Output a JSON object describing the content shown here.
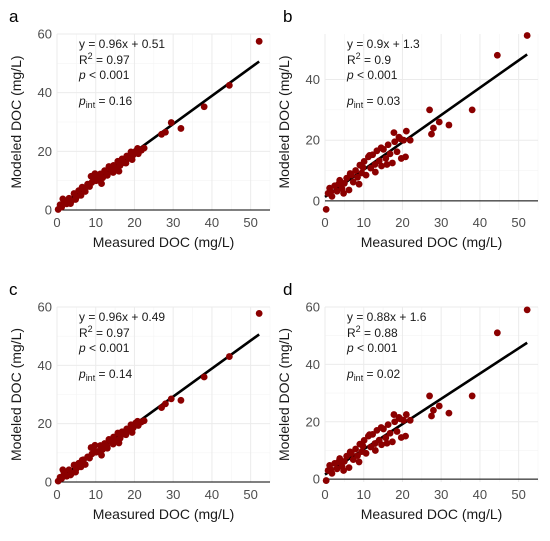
{
  "chart_data": [
    {
      "panel": "a",
      "type": "scatter",
      "xlabel": "Measured DOC (mg/L)",
      "ylabel": "Modeled DOC (mg/L)",
      "xlim": [
        0,
        55
      ],
      "ylim": [
        0,
        60
      ],
      "xticks": [
        0,
        10,
        20,
        30,
        40,
        50
      ],
      "yticks": [
        0,
        20,
        40,
        60
      ],
      "fit": {
        "slope": 0.96,
        "intercept": 0.51
      },
      "annotation": {
        "eq": "y = 0.96x + 0.51",
        "r2_label": "R",
        "r2_sup": "2",
        "r2_value": " = 0.97",
        "p_label": "p",
        "p_value": " < 0.001",
        "pint_label": "p",
        "pint_sub": "int",
        "pint_value": " = 0.16"
      },
      "x": [
        0.3,
        0.8,
        1.2,
        1.8,
        2.5,
        3.1,
        3.8,
        4.4,
        5.0,
        5.6,
        6.2,
        6.8,
        7.3,
        7.9,
        8.4,
        9.0,
        9.5,
        10.1,
        10.6,
        11.2,
        11.8,
        12.3,
        12.9,
        13.4,
        14.0,
        14.6,
        15.1,
        15.7,
        16.3,
        16.8,
        17.4,
        18.0,
        18.6,
        19.1,
        19.7,
        20.3,
        21.0,
        21.8,
        22.5,
        27.0,
        28.0,
        29.5,
        32.0,
        38.0,
        44.5,
        52.2,
        1.5,
        3.5,
        6.5,
        8.8,
        11.5,
        14.5,
        17.8,
        20.8,
        4.8,
        9.8,
        13.0,
        16.0,
        19.4
      ],
      "y": [
        0.2,
        1.8,
        1.0,
        3.0,
        2.1,
        4.0,
        3.2,
        5.6,
        4.4,
        6.6,
        5.0,
        7.4,
        6.3,
        8.8,
        8.0,
        9.4,
        11.2,
        10.0,
        10.7,
        12.3,
        11.0,
        13.4,
        12.0,
        14.8,
        13.6,
        15.2,
        14.2,
        16.6,
        15.2,
        17.4,
        16.1,
        18.4,
        17.6,
        19.8,
        18.8,
        20.0,
        19.2,
        20.4,
        21.1,
        25.8,
        26.5,
        29.8,
        27.8,
        35.2,
        42.5,
        57.5,
        3.8,
        2.2,
        7.8,
        11.5,
        9.0,
        12.8,
        16.0,
        21.0,
        3.6,
        12.4,
        11.8,
        13.2,
        17.2
      ]
    },
    {
      "panel": "b",
      "type": "scatter",
      "xlabel": "Measured DOC (mg/L)",
      "ylabel": "Modeled DOC (mg/L)",
      "xlim": [
        0,
        55
      ],
      "ylim": [
        -3,
        55
      ],
      "xticks": [
        0,
        10,
        20,
        30,
        40,
        50
      ],
      "yticks": [
        0,
        20,
        40
      ],
      "fit": {
        "slope": 0.9,
        "intercept": 1.3
      },
      "annotation": {
        "eq": "y = 0.9x + 1.3",
        "r2_label": "R",
        "r2_sup": "2",
        "r2_value": " = 0.9",
        "p_label": "p",
        "p_value": " < 0.001",
        "pint_label": "p",
        "pint_sub": "int",
        "pint_value": " = 0.03"
      },
      "x": [
        0.3,
        0.8,
        1.2,
        1.8,
        2.5,
        3.1,
        3.8,
        4.4,
        5.0,
        5.6,
        6.2,
        6.8,
        7.3,
        7.9,
        8.4,
        9.0,
        9.5,
        10.1,
        10.6,
        11.2,
        11.8,
        12.3,
        12.9,
        13.4,
        14.0,
        14.6,
        15.1,
        15.7,
        16.3,
        16.8,
        17.4,
        18.0,
        18.6,
        19.1,
        19.7,
        20.3,
        21.0,
        27.0,
        28.0,
        29.5,
        32.0,
        38.0,
        44.5,
        52.2,
        1.5,
        3.5,
        6.5,
        8.8,
        11.5,
        14.5,
        17.8,
        20.8,
        4.8,
        9.8,
        13.0,
        16.0,
        19.4,
        22.0,
        27.5
      ],
      "y": [
        -2.8,
        2.5,
        4.2,
        1.5,
        5.0,
        3.2,
        6.8,
        4.0,
        5.8,
        7.5,
        3.6,
        8.5,
        6.2,
        10.0,
        7.8,
        11.8,
        9.2,
        13.0,
        8.5,
        14.5,
        10.8,
        15.2,
        12.0,
        16.5,
        13.2,
        11.5,
        17.0,
        14.0,
        18.5,
        15.5,
        12.5,
        19.5,
        16.2,
        21.0,
        14.0,
        20.0,
        23.0,
        30.0,
        24.0,
        26.0,
        25.0,
        30.0,
        48.0,
        54.5,
        3.0,
        5.5,
        9.0,
        5.5,
        15.0,
        17.5,
        22.5,
        14.5,
        2.5,
        11.0,
        9.5,
        12.0,
        20.5,
        20.0,
        22.0
      ]
    },
    {
      "panel": "c",
      "type": "scatter",
      "xlabel": "Measured DOC (mg/L)",
      "ylabel": "Modeled DOC (mg/L)",
      "xlim": [
        0,
        55
      ],
      "ylim": [
        0,
        60
      ],
      "xticks": [
        0,
        10,
        20,
        30,
        40,
        50
      ],
      "yticks": [
        0,
        20,
        40,
        60
      ],
      "fit": {
        "slope": 0.96,
        "intercept": 0.49
      },
      "annotation": {
        "eq": "y = 0.96x + 0.49",
        "r2_label": "R",
        "r2_sup": "2",
        "r2_value": " = 0.97",
        "p_label": "p",
        "p_value": " < 0.001",
        "pint_label": "p",
        "pint_sub": "int",
        "pint_value": " = 0.14"
      },
      "x": [
        0.3,
        0.8,
        1.2,
        1.8,
        2.5,
        3.1,
        3.8,
        4.4,
        5.0,
        5.6,
        6.2,
        6.8,
        7.3,
        7.9,
        8.4,
        9.0,
        9.5,
        10.1,
        10.6,
        11.2,
        11.8,
        12.3,
        12.9,
        13.4,
        14.0,
        14.6,
        15.1,
        15.7,
        16.3,
        16.8,
        17.4,
        18.0,
        18.6,
        19.1,
        19.7,
        20.3,
        21.0,
        21.8,
        22.5,
        27.0,
        28.0,
        29.5,
        32.0,
        38.0,
        44.5,
        52.2,
        1.5,
        3.5,
        6.5,
        8.8,
        11.5,
        14.5,
        17.8,
        20.8,
        4.8,
        9.8,
        13.0,
        16.0,
        19.4
      ],
      "y": [
        0.3,
        1.6,
        1.2,
        3.2,
        2.0,
        4.2,
        3.0,
        5.8,
        4.6,
        6.4,
        5.2,
        7.6,
        6.0,
        8.6,
        8.2,
        9.6,
        11.0,
        10.2,
        10.5,
        12.5,
        11.2,
        13.2,
        12.2,
        14.6,
        13.8,
        15.4,
        14.0,
        16.8,
        15.0,
        17.2,
        16.4,
        18.2,
        17.8,
        19.6,
        18.6,
        20.2,
        19.4,
        20.6,
        21.0,
        25.5,
        26.8,
        28.5,
        28.0,
        36.0,
        43.0,
        57.8,
        4.2,
        2.4,
        7.5,
        11.8,
        9.2,
        13.0,
        16.2,
        20.8,
        3.4,
        12.6,
        11.6,
        13.4,
        17.0
      ]
    },
    {
      "panel": "d",
      "type": "scatter",
      "xlabel": "Measured DOC (mg/L)",
      "ylabel": "Modeled DOC (mg/L)",
      "xlim": [
        0,
        55
      ],
      "ylim": [
        -1,
        60
      ],
      "xticks": [
        0,
        10,
        20,
        30,
        40,
        50
      ],
      "yticks": [
        0,
        20,
        40,
        60
      ],
      "fit": {
        "slope": 0.88,
        "intercept": 1.6
      },
      "annotation": {
        "eq": "y = 0.88x + 1.6",
        "r2_label": "R",
        "r2_sup": "2",
        "r2_value": " = 0.88",
        "p_label": "p",
        "p_value": " < 0.001",
        "pint_label": "p",
        "pint_sub": "int",
        "pint_value": " = 0.02"
      },
      "x": [
        0.3,
        0.8,
        1.2,
        1.8,
        2.5,
        3.1,
        3.8,
        4.4,
        5.0,
        5.6,
        6.2,
        6.8,
        7.3,
        7.9,
        8.4,
        9.0,
        9.5,
        10.1,
        10.6,
        11.2,
        11.8,
        12.3,
        12.9,
        13.4,
        14.0,
        14.6,
        15.1,
        15.7,
        16.3,
        16.8,
        17.4,
        18.0,
        18.6,
        19.1,
        19.7,
        20.3,
        21.0,
        27.0,
        28.0,
        29.5,
        32.0,
        38.0,
        44.5,
        52.2,
        1.5,
        3.5,
        6.5,
        8.8,
        11.5,
        14.5,
        17.8,
        20.8,
        4.8,
        9.8,
        13.0,
        16.0,
        19.4,
        22.0,
        27.5
      ],
      "y": [
        -0.5,
        3.0,
        4.8,
        2.0,
        5.5,
        3.6,
        7.2,
        4.4,
        6.2,
        8.0,
        4.0,
        9.0,
        6.8,
        10.5,
        8.2,
        12.2,
        9.6,
        13.5,
        9.0,
        15.0,
        11.2,
        15.6,
        12.4,
        17.0,
        13.6,
        12.0,
        17.5,
        14.4,
        19.0,
        16.0,
        13.0,
        20.0,
        16.6,
        21.5,
        14.5,
        20.5,
        22.5,
        29.0,
        24.0,
        25.5,
        23.0,
        29.0,
        51.0,
        59.0,
        3.4,
        6.0,
        9.5,
        6.0,
        15.5,
        18.0,
        22.5,
        15.0,
        3.0,
        11.5,
        10.0,
        12.5,
        21.0,
        20.5,
        22.0
      ]
    }
  ]
}
